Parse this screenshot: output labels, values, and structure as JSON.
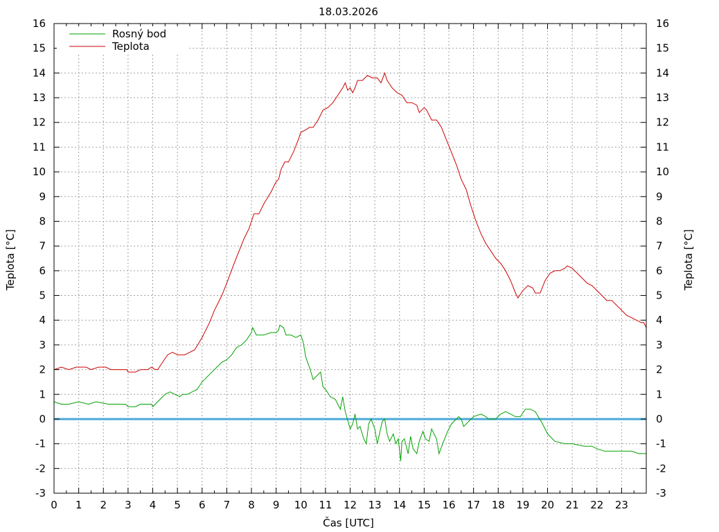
{
  "chart_data": {
    "type": "line",
    "title": "18.03.2026",
    "xlabel": "Čas [UTC]",
    "ylabel": "Teplota [°C]",
    "ylabel_right": "Teplota [°C]",
    "xlim": [
      0,
      24
    ],
    "ylim": [
      -3,
      16
    ],
    "x_ticks": [
      "0",
      "1",
      "2",
      "3",
      "4",
      "5",
      "6",
      "7",
      "8",
      "9",
      "10",
      "11",
      "12",
      "13",
      "14",
      "15",
      "16",
      "17",
      "18",
      "19",
      "20",
      "21",
      "22",
      "23"
    ],
    "y_ticks": [
      "16",
      "15",
      "14",
      "13",
      "12",
      "11",
      "10",
      "9",
      "8",
      "7",
      "6",
      "5",
      "4",
      "3",
      "2",
      "1",
      "0",
      "-1",
      "-2",
      "-3"
    ],
    "grid": true,
    "legend_position": "top-left",
    "reference_line": {
      "y": 0,
      "color": "#4aa8d8"
    },
    "series": [
      {
        "name": "Rosný bod",
        "color": "#00a000",
        "points": [
          [
            0,
            0.7
          ],
          [
            0.3,
            0.6
          ],
          [
            0.6,
            0.6
          ],
          [
            1,
            0.7
          ],
          [
            1.4,
            0.6
          ],
          [
            1.7,
            0.7
          ],
          [
            2.2,
            0.6
          ],
          [
            2.6,
            0.6
          ],
          [
            2.9,
            0.6
          ],
          [
            3.0,
            0.5
          ],
          [
            3.3,
            0.5
          ],
          [
            3.5,
            0.6
          ],
          [
            3.8,
            0.6
          ],
          [
            3.95,
            0.6
          ],
          [
            4.0,
            0.5
          ],
          [
            4.2,
            0.7
          ],
          [
            4.5,
            1.0
          ],
          [
            4.7,
            1.1
          ],
          [
            4.9,
            1.0
          ],
          [
            5.1,
            0.9
          ],
          [
            5.2,
            1.0
          ],
          [
            5.4,
            1.0
          ],
          [
            5.6,
            1.1
          ],
          [
            5.8,
            1.2
          ],
          [
            6.0,
            1.5
          ],
          [
            6.3,
            1.8
          ],
          [
            6.6,
            2.1
          ],
          [
            6.8,
            2.3
          ],
          [
            7.0,
            2.4
          ],
          [
            7.2,
            2.6
          ],
          [
            7.4,
            2.9
          ],
          [
            7.6,
            3.0
          ],
          [
            7.8,
            3.2
          ],
          [
            8.0,
            3.5
          ],
          [
            8.05,
            3.7
          ],
          [
            8.2,
            3.4
          ],
          [
            8.5,
            3.4
          ],
          [
            8.8,
            3.5
          ],
          [
            9.0,
            3.5
          ],
          [
            9.1,
            3.6
          ],
          [
            9.15,
            3.8
          ],
          [
            9.3,
            3.7
          ],
          [
            9.4,
            3.4
          ],
          [
            9.6,
            3.4
          ],
          [
            9.8,
            3.3
          ],
          [
            10.0,
            3.4
          ],
          [
            10.1,
            3.1
          ],
          [
            10.2,
            2.5
          ],
          [
            10.35,
            2.1
          ],
          [
            10.5,
            1.6
          ],
          [
            10.7,
            1.8
          ],
          [
            10.8,
            1.9
          ],
          [
            10.9,
            1.3
          ],
          [
            11.0,
            1.2
          ],
          [
            11.2,
            0.9
          ],
          [
            11.4,
            0.8
          ],
          [
            11.6,
            0.4
          ],
          [
            11.7,
            0.9
          ],
          [
            11.8,
            0.3
          ],
          [
            12.0,
            -0.4
          ],
          [
            12.1,
            -0.2
          ],
          [
            12.2,
            0.2
          ],
          [
            12.3,
            -0.4
          ],
          [
            12.4,
            -0.3
          ],
          [
            12.55,
            -0.8
          ],
          [
            12.65,
            -1.0
          ],
          [
            12.75,
            -0.2
          ],
          [
            12.85,
            0.0
          ],
          [
            13.0,
            -0.4
          ],
          [
            13.1,
            -1.0
          ],
          [
            13.3,
            -0.1
          ],
          [
            13.4,
            0.0
          ],
          [
            13.5,
            -0.6
          ],
          [
            13.6,
            -0.9
          ],
          [
            13.75,
            -0.6
          ],
          [
            13.85,
            -1.0
          ],
          [
            13.95,
            -0.8
          ],
          [
            14.05,
            -1.7
          ],
          [
            14.1,
            -0.9
          ],
          [
            14.2,
            -0.8
          ],
          [
            14.35,
            -1.4
          ],
          [
            14.45,
            -0.7
          ],
          [
            14.55,
            -1.2
          ],
          [
            14.7,
            -1.4
          ],
          [
            14.8,
            -0.9
          ],
          [
            14.95,
            -0.5
          ],
          [
            15.05,
            -0.8
          ],
          [
            15.2,
            -0.9
          ],
          [
            15.3,
            -0.4
          ],
          [
            15.4,
            -0.6
          ],
          [
            15.5,
            -0.8
          ],
          [
            15.6,
            -1.4
          ],
          [
            15.75,
            -1.0
          ],
          [
            15.95,
            -0.5
          ],
          [
            16.1,
            -0.2
          ],
          [
            16.3,
            0.0
          ],
          [
            16.4,
            0.1
          ],
          [
            16.5,
            0.0
          ],
          [
            16.6,
            -0.3
          ],
          [
            16.8,
            -0.1
          ],
          [
            17.0,
            0.1
          ],
          [
            17.3,
            0.2
          ],
          [
            17.5,
            0.1
          ],
          [
            17.6,
            0.0
          ],
          [
            17.9,
            0.0
          ],
          [
            18.1,
            0.2
          ],
          [
            18.3,
            0.3
          ],
          [
            18.5,
            0.2
          ],
          [
            18.7,
            0.1
          ],
          [
            18.9,
            0.1
          ],
          [
            19.1,
            0.4
          ],
          [
            19.3,
            0.4
          ],
          [
            19.5,
            0.3
          ],
          [
            19.8,
            -0.2
          ],
          [
            20.0,
            -0.6
          ],
          [
            20.3,
            -0.9
          ],
          [
            20.7,
            -1.0
          ],
          [
            21.0,
            -1.0
          ],
          [
            21.5,
            -1.1
          ],
          [
            21.8,
            -1.1
          ],
          [
            22.0,
            -1.2
          ],
          [
            22.3,
            -1.3
          ],
          [
            22.6,
            -1.3
          ],
          [
            23.0,
            -1.3
          ],
          [
            23.4,
            -1.3
          ],
          [
            23.7,
            -1.4
          ],
          [
            24.0,
            -1.4
          ]
        ]
      },
      {
        "name": "Teplota",
        "color": "#cc0000",
        "points": [
          [
            0,
            2.0
          ],
          [
            0.3,
            2.1
          ],
          [
            0.6,
            2.0
          ],
          [
            0.9,
            2.1
          ],
          [
            1.3,
            2.1
          ],
          [
            1.5,
            2.0
          ],
          [
            1.8,
            2.1
          ],
          [
            2.1,
            2.1
          ],
          [
            2.3,
            2.0
          ],
          [
            2.7,
            2.0
          ],
          [
            2.95,
            2.0
          ],
          [
            3.0,
            1.9
          ],
          [
            3.3,
            1.9
          ],
          [
            3.5,
            2.0
          ],
          [
            3.8,
            2.0
          ],
          [
            3.95,
            2.1
          ],
          [
            4.1,
            2.0
          ],
          [
            4.2,
            2.0
          ],
          [
            4.4,
            2.3
          ],
          [
            4.6,
            2.6
          ],
          [
            4.8,
            2.7
          ],
          [
            5.0,
            2.6
          ],
          [
            5.3,
            2.6
          ],
          [
            5.5,
            2.7
          ],
          [
            5.7,
            2.8
          ],
          [
            6.0,
            3.3
          ],
          [
            6.3,
            3.9
          ],
          [
            6.5,
            4.4
          ],
          [
            6.8,
            5.0
          ],
          [
            7.0,
            5.5
          ],
          [
            7.3,
            6.3
          ],
          [
            7.5,
            6.8
          ],
          [
            7.7,
            7.3
          ],
          [
            7.9,
            7.7
          ],
          [
            8.0,
            8.0
          ],
          [
            8.1,
            8.3
          ],
          [
            8.3,
            8.3
          ],
          [
            8.5,
            8.7
          ],
          [
            8.8,
            9.2
          ],
          [
            9.0,
            9.6
          ],
          [
            9.1,
            9.7
          ],
          [
            9.2,
            10.1
          ],
          [
            9.35,
            10.4
          ],
          [
            9.5,
            10.4
          ],
          [
            9.7,
            10.8
          ],
          [
            9.9,
            11.3
          ],
          [
            10.0,
            11.6
          ],
          [
            10.2,
            11.7
          ],
          [
            10.35,
            11.8
          ],
          [
            10.5,
            11.8
          ],
          [
            10.7,
            12.1
          ],
          [
            10.9,
            12.5
          ],
          [
            11.1,
            12.6
          ],
          [
            11.3,
            12.8
          ],
          [
            11.5,
            13.1
          ],
          [
            11.7,
            13.4
          ],
          [
            11.8,
            13.6
          ],
          [
            11.9,
            13.3
          ],
          [
            12.0,
            13.4
          ],
          [
            12.1,
            13.2
          ],
          [
            12.2,
            13.4
          ],
          [
            12.3,
            13.7
          ],
          [
            12.5,
            13.7
          ],
          [
            12.7,
            13.9
          ],
          [
            12.9,
            13.8
          ],
          [
            13.1,
            13.8
          ],
          [
            13.25,
            13.6
          ],
          [
            13.4,
            14.0
          ],
          [
            13.5,
            13.7
          ],
          [
            13.7,
            13.4
          ],
          [
            13.9,
            13.2
          ],
          [
            14.1,
            13.1
          ],
          [
            14.3,
            12.8
          ],
          [
            14.5,
            12.8
          ],
          [
            14.7,
            12.7
          ],
          [
            14.8,
            12.4
          ],
          [
            15.0,
            12.6
          ],
          [
            15.1,
            12.5
          ],
          [
            15.3,
            12.1
          ],
          [
            15.5,
            12.1
          ],
          [
            15.7,
            11.8
          ],
          [
            15.9,
            11.3
          ],
          [
            16.1,
            10.8
          ],
          [
            16.3,
            10.3
          ],
          [
            16.5,
            9.7
          ],
          [
            16.7,
            9.3
          ],
          [
            16.9,
            8.6
          ],
          [
            17.1,
            8.0
          ],
          [
            17.3,
            7.5
          ],
          [
            17.5,
            7.1
          ],
          [
            17.7,
            6.8
          ],
          [
            17.9,
            6.5
          ],
          [
            18.1,
            6.3
          ],
          [
            18.3,
            6.0
          ],
          [
            18.5,
            5.6
          ],
          [
            18.7,
            5.1
          ],
          [
            18.8,
            4.9
          ],
          [
            19.0,
            5.2
          ],
          [
            19.2,
            5.4
          ],
          [
            19.4,
            5.3
          ],
          [
            19.5,
            5.1
          ],
          [
            19.7,
            5.1
          ],
          [
            19.9,
            5.6
          ],
          [
            20.1,
            5.9
          ],
          [
            20.3,
            6.0
          ],
          [
            20.5,
            6.0
          ],
          [
            20.7,
            6.1
          ],
          [
            20.8,
            6.2
          ],
          [
            21.0,
            6.1
          ],
          [
            21.2,
            5.9
          ],
          [
            21.4,
            5.7
          ],
          [
            21.6,
            5.5
          ],
          [
            21.8,
            5.4
          ],
          [
            22.0,
            5.2
          ],
          [
            22.2,
            5.0
          ],
          [
            22.4,
            4.8
          ],
          [
            22.6,
            4.8
          ],
          [
            22.8,
            4.6
          ],
          [
            23.0,
            4.4
          ],
          [
            23.2,
            4.2
          ],
          [
            23.4,
            4.1
          ],
          [
            23.6,
            4.0
          ],
          [
            23.8,
            3.9
          ],
          [
            23.9,
            3.9
          ],
          [
            24.0,
            3.7
          ]
        ]
      }
    ]
  }
}
